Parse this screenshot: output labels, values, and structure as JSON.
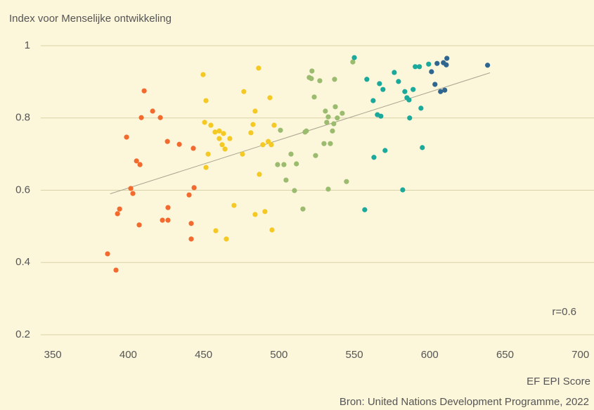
{
  "chart_data": {
    "type": "scatter",
    "title": "Index voor Menselijke ontwikkeling",
    "x_label": "EF EPI Score",
    "source": "Bron: United Nations Development Programme, 2022",
    "annotation": "r=0.6",
    "xlim": [
      342,
      709
    ],
    "ylim": [
      0.2,
      1
    ],
    "xticks": [
      350,
      400,
      450,
      500,
      550,
      600,
      650,
      700
    ],
    "yticks": [
      0.2,
      0.4,
      0.6,
      0.8,
      1
    ],
    "grid": true,
    "trendline": {
      "color": "#a8a690",
      "x": [
        388,
        640
      ],
      "y": [
        0.59,
        0.925
      ]
    },
    "series": [
      {
        "color": "#f26a2e",
        "x": [
          386.3,
          391.9,
          392.9,
          394.3,
          398.9,
          401.7,
          403.1,
          405.5,
          407.8,
          407.3,
          408.7,
          410.6,
          416.2,
          421.3,
          426.0,
          426.4,
          422.7,
          426.4,
          433.9,
          440.4,
          443.2,
          443.7,
          441.8,
          441.8
        ],
        "values": [
          0.424,
          0.379,
          0.535,
          0.548,
          0.747,
          0.605,
          0.591,
          0.681,
          0.671,
          0.504,
          0.801,
          0.875,
          0.819,
          0.801,
          0.735,
          0.552,
          0.517,
          0.517,
          0.727,
          0.587,
          0.716,
          0.607,
          0.508,
          0.465
        ]
      },
      {
        "color": "#f5c924",
        "x": [
          449.7,
          451.6,
          450.7,
          454.8,
          457.6,
          460.4,
          463.2,
          460.4,
          462.3,
          464.2,
          467.4,
          453.0,
          451.6,
          458.1,
          465.1,
          470.2,
          475.8,
          476.7,
          481.4,
          482.8,
          484.2,
          486.5,
          487.0,
          484.2,
          490.7,
          489.3,
          492.9,
          494.9,
          496.8,
          494.0,
          495.4
        ],
        "values": [
          0.92,
          0.848,
          0.788,
          0.78,
          0.761,
          0.764,
          0.757,
          0.743,
          0.726,
          0.714,
          0.743,
          0.7,
          0.663,
          0.488,
          0.465,
          0.558,
          0.7,
          0.873,
          0.759,
          0.782,
          0.819,
          0.938,
          0.644,
          0.533,
          0.541,
          0.726,
          0.735,
          0.726,
          0.78,
          0.856,
          0.49
        ]
      },
      {
        "color": "#9bbb6e",
        "x": [
          501.0,
          499.1,
          503.3,
          504.7,
          508.0,
          510.3,
          511.6,
          515.9,
          517.3,
          518.2,
          520.1,
          521.9,
          521.5,
          523.4,
          524.3,
          527.1,
          529.9,
          530.8,
          532.7,
          531.7,
          532.7,
          534.1,
          535.5,
          536.4,
          537.4,
          536.9,
          538.7,
          542.0,
          544.8,
          549.0
        ],
        "values": [
          0.766,
          0.671,
          0.671,
          0.628,
          0.7,
          0.599,
          0.673,
          0.548,
          0.761,
          0.764,
          0.912,
          0.93,
          0.909,
          0.858,
          0.696,
          0.903,
          0.729,
          0.819,
          0.803,
          0.788,
          0.603,
          0.729,
          0.764,
          0.784,
          0.831,
          0.907,
          0.8,
          0.813,
          0.624,
          0.955
        ]
      },
      {
        "color": "#1aa99a",
        "x": [
          550.0,
          556.9,
          558.3,
          562.5,
          563.0,
          566.7,
          565.3,
          567.6,
          569.0,
          570.4,
          576.5,
          579.3,
          582.1,
          583.5,
          584.9,
          586.3,
          586.7,
          589.0,
          590.4,
          593.2,
          594.2,
          595.1,
          599.3
        ],
        "values": [
          0.967,
          0.546,
          0.907,
          0.848,
          0.691,
          0.895,
          0.809,
          0.805,
          0.879,
          0.71,
          0.926,
          0.901,
          0.601,
          0.873,
          0.856,
          0.85,
          0.8,
          0.879,
          0.942,
          0.942,
          0.827,
          0.718,
          0.949
        ]
      },
      {
        "color": "#2f6690",
        "x": [
          601.2,
          603.5,
          604.9,
          607.2,
          609.1,
          610.0,
          611.0,
          611.4,
          638.4
        ],
        "values": [
          0.928,
          0.893,
          0.951,
          0.873,
          0.953,
          0.877,
          0.947,
          0.965,
          0.946
        ]
      }
    ]
  }
}
